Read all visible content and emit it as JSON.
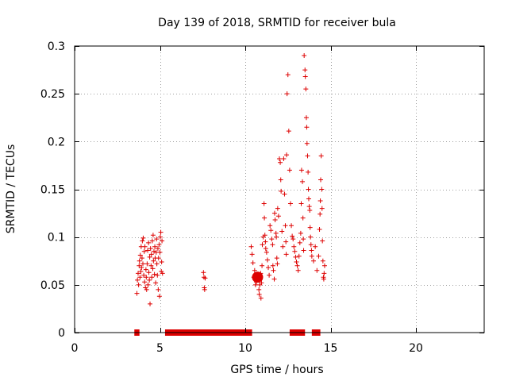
{
  "chart_data": {
    "type": "scatter",
    "title": "Day 139 of 2018, SRMTID for receiver bula",
    "xlabel": "GPS time / hours",
    "ylabel": "SRMTID / TECUs",
    "xlim": [
      0,
      24
    ],
    "ylim": [
      0,
      0.3
    ],
    "x_ticks": [
      0,
      5,
      10,
      15,
      20
    ],
    "x_tick_labels": [
      "0",
      "5",
      "10",
      "15",
      "20"
    ],
    "y_ticks": [
      0,
      0.05,
      0.1,
      0.15,
      0.2,
      0.25,
      0.3
    ],
    "y_tick_labels": [
      "0",
      "0.05",
      "0.1",
      "0.15",
      "0.2",
      "0.25",
      "0.3"
    ],
    "grid": true,
    "marker": "+",
    "color": "#dd0000",
    "series": [
      {
        "name": "SRMTID",
        "points": [
          [
            3.65,
            0.041
          ],
          [
            3.68,
            0.055
          ],
          [
            3.72,
            0.062
          ],
          [
            3.75,
            0.05
          ],
          [
            3.78,
            0.07
          ],
          [
            3.8,
            0.075
          ],
          [
            3.83,
            0.058
          ],
          [
            3.85,
            0.081
          ],
          [
            3.88,
            0.064
          ],
          [
            3.9,
            0.09
          ],
          [
            3.92,
            0.068
          ],
          [
            3.95,
            0.078
          ],
          [
            3.97,
            0.096
          ],
          [
            4.0,
            0.072
          ],
          [
            4.02,
            0.099
          ],
          [
            4.05,
            0.06
          ],
          [
            4.08,
            0.085
          ],
          [
            4.1,
            0.053
          ],
          [
            4.12,
            0.09
          ],
          [
            4.15,
            0.047
          ],
          [
            4.18,
            0.066
          ],
          [
            4.2,
            0.058
          ],
          [
            4.22,
            0.045
          ],
          [
            4.25,
            0.072
          ],
          [
            4.28,
            0.086
          ],
          [
            4.3,
            0.05
          ],
          [
            4.33,
            0.094
          ],
          [
            4.35,
            0.063
          ],
          [
            4.38,
            0.055
          ],
          [
            4.4,
            0.079
          ],
          [
            4.42,
            0.03
          ],
          [
            4.45,
            0.088
          ],
          [
            4.48,
            0.07
          ],
          [
            4.5,
            0.082
          ],
          [
            4.52,
            0.058
          ],
          [
            4.55,
            0.096
          ],
          [
            4.58,
            0.067
          ],
          [
            4.6,
            0.102
          ],
          [
            4.62,
            0.075
          ],
          [
            4.65,
            0.085
          ],
          [
            4.68,
            0.061
          ],
          [
            4.7,
            0.09
          ],
          [
            4.72,
            0.078
          ],
          [
            4.75,
            0.052
          ],
          [
            4.78,
            0.084
          ],
          [
            4.8,
            0.098
          ],
          [
            4.82,
            0.072
          ],
          [
            4.85,
            0.06
          ],
          [
            4.88,
            0.088
          ],
          [
            4.9,
            0.045
          ],
          [
            4.92,
            0.078
          ],
          [
            4.95,
            0.092
          ],
          [
            4.97,
            0.038
          ],
          [
            5.0,
            0.084
          ],
          [
            5.02,
            0.1
          ],
          [
            5.05,
            0.105
          ],
          [
            5.08,
            0.064
          ],
          [
            5.1,
            0.074
          ],
          [
            5.12,
            0.096
          ],
          [
            5.15,
            0.062
          ],
          [
            7.55,
            0.063
          ],
          [
            7.58,
            0.058
          ],
          [
            7.6,
            0.047
          ],
          [
            7.62,
            0.045
          ],
          [
            7.65,
            0.057
          ],
          [
            10.35,
            0.09
          ],
          [
            10.4,
            0.082
          ],
          [
            10.45,
            0.073
          ],
          [
            10.5,
            0.058
          ],
          [
            10.55,
            0.065
          ],
          [
            10.6,
            0.05
          ],
          [
            10.65,
            0.053
          ],
          [
            10.7,
            0.057
          ],
          [
            10.72,
            0.06
          ],
          [
            10.75,
            0.061
          ],
          [
            10.78,
            0.055
          ],
          [
            10.8,
            0.045
          ],
          [
            10.82,
            0.04
          ],
          [
            10.85,
            0.05
          ],
          [
            10.88,
            0.059
          ],
          [
            10.9,
            0.062
          ],
          [
            10.92,
            0.036
          ],
          [
            10.95,
            0.052
          ],
          [
            10.98,
            0.07
          ],
          [
            11.0,
            0.092
          ],
          [
            11.05,
            0.1
          ],
          [
            11.1,
            0.135
          ],
          [
            11.12,
            0.12
          ],
          [
            11.15,
            0.102
          ],
          [
            11.18,
            0.095
          ],
          [
            11.2,
            0.088
          ],
          [
            11.25,
            0.084
          ],
          [
            11.3,
            0.076
          ],
          [
            11.35,
            0.068
          ],
          [
            11.4,
            0.06
          ],
          [
            11.45,
            0.112
          ],
          [
            11.5,
            0.107
          ],
          [
            11.55,
            0.098
          ],
          [
            11.6,
            0.092
          ],
          [
            11.62,
            0.07
          ],
          [
            11.65,
            0.065
          ],
          [
            11.7,
            0.056
          ],
          [
            11.72,
            0.125
          ],
          [
            11.75,
            0.118
          ],
          [
            11.8,
            0.104
          ],
          [
            11.82,
            0.1
          ],
          [
            11.85,
            0.078
          ],
          [
            11.88,
            0.072
          ],
          [
            11.9,
            0.13
          ],
          [
            11.95,
            0.122
          ],
          [
            12.0,
            0.182
          ],
          [
            12.05,
            0.178
          ],
          [
            12.08,
            0.16
          ],
          [
            12.1,
            0.148
          ],
          [
            12.15,
            0.106
          ],
          [
            12.2,
            0.09
          ],
          [
            12.25,
            0.182
          ],
          [
            12.3,
            0.145
          ],
          [
            12.35,
            0.112
          ],
          [
            12.38,
            0.095
          ],
          [
            12.4,
            0.082
          ],
          [
            12.42,
            0.186
          ],
          [
            12.45,
            0.25
          ],
          [
            12.5,
            0.27
          ],
          [
            12.55,
            0.211
          ],
          [
            12.6,
            0.17
          ],
          [
            12.65,
            0.135
          ],
          [
            12.7,
            0.112
          ],
          [
            12.75,
            0.101
          ],
          [
            12.8,
            0.098
          ],
          [
            12.85,
            0.09
          ],
          [
            12.9,
            0.085
          ],
          [
            12.95,
            0.079
          ],
          [
            13.0,
            0.074
          ],
          [
            13.05,
            0.07
          ],
          [
            13.1,
            0.065
          ],
          [
            13.15,
            0.08
          ],
          [
            13.2,
            0.094
          ],
          [
            13.25,
            0.104
          ],
          [
            13.28,
            0.135
          ],
          [
            13.3,
            0.17
          ],
          [
            13.35,
            0.158
          ],
          [
            13.38,
            0.12
          ],
          [
            13.4,
            0.098
          ],
          [
            13.42,
            0.086
          ],
          [
            13.45,
            0.29
          ],
          [
            13.5,
            0.275
          ],
          [
            13.52,
            0.268
          ],
          [
            13.55,
            0.255
          ],
          [
            13.58,
            0.225
          ],
          [
            13.6,
            0.215
          ],
          [
            13.62,
            0.198
          ],
          [
            13.65,
            0.185
          ],
          [
            13.68,
            0.168
          ],
          [
            13.7,
            0.15
          ],
          [
            13.72,
            0.14
          ],
          [
            13.75,
            0.132
          ],
          [
            13.78,
            0.128
          ],
          [
            13.8,
            0.11
          ],
          [
            13.82,
            0.1
          ],
          [
            13.85,
            0.092
          ],
          [
            13.88,
            0.086
          ],
          [
            13.9,
            0.08
          ],
          [
            14.0,
            0.075
          ],
          [
            14.1,
            0.09
          ],
          [
            14.2,
            0.065
          ],
          [
            14.3,
            0.08
          ],
          [
            14.35,
            0.108
          ],
          [
            14.38,
            0.124
          ],
          [
            14.4,
            0.138
          ],
          [
            14.42,
            0.16
          ],
          [
            14.45,
            0.185
          ],
          [
            14.48,
            0.15
          ],
          [
            14.5,
            0.13
          ],
          [
            14.52,
            0.096
          ],
          [
            14.55,
            0.075
          ],
          [
            14.58,
            0.058
          ],
          [
            14.6,
            0.056
          ],
          [
            14.62,
            0.062
          ],
          [
            14.65,
            0.07
          ]
        ]
      }
    ],
    "coverage_bars": [
      [
        3.5,
        3.8
      ],
      [
        5.3,
        10.4
      ],
      [
        12.6,
        13.5
      ],
      [
        13.9,
        14.4
      ]
    ]
  }
}
